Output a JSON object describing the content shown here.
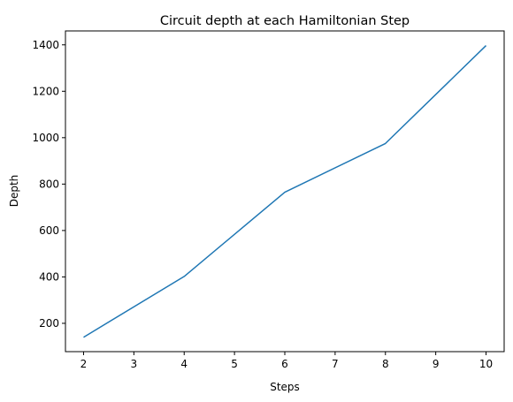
{
  "chart_data": {
    "type": "line",
    "title": "Circuit depth at each Hamiltonian Step",
    "xlabel": "Steps",
    "ylabel": "Depth",
    "xlim": [
      1.64,
      10.36
    ],
    "ylim": [
      78,
      1460
    ],
    "xticks": [
      2,
      3,
      4,
      5,
      6,
      7,
      8,
      9,
      10
    ],
    "yticks": [
      200,
      400,
      600,
      800,
      1000,
      1200,
      1400
    ],
    "grid": false,
    "series": [
      {
        "color": "#1f77b4",
        "x": [
          2,
          4,
          6,
          8,
          10
        ],
        "y": [
          140,
          402,
          765,
          975,
          1397
        ]
      }
    ]
  }
}
